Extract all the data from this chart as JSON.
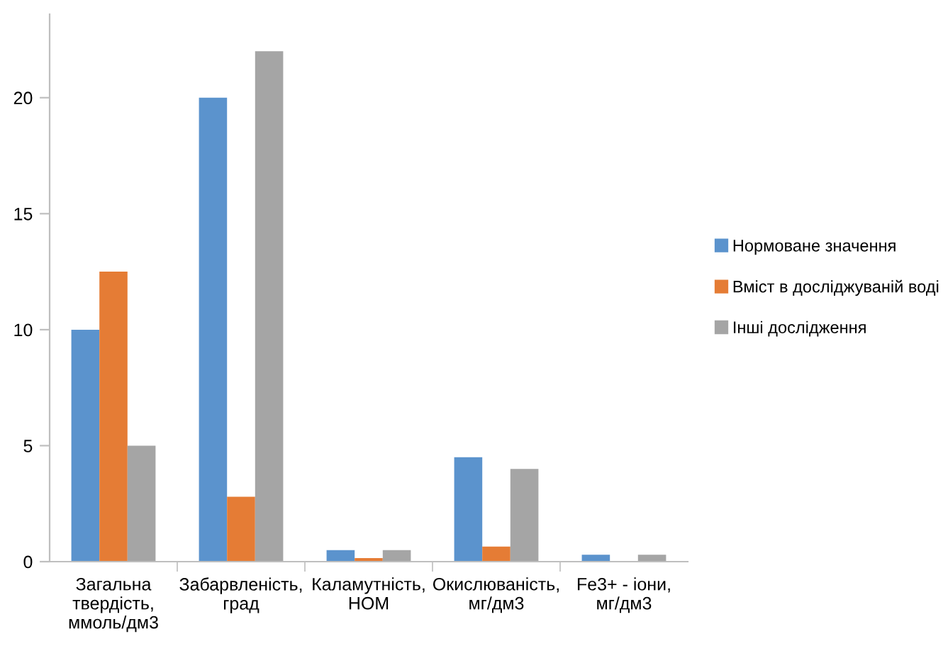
{
  "chart_data": {
    "type": "bar",
    "categories": [
      "Загальна\nтвердість,\nммоль/дм3",
      "Забарвленість,\nград",
      "Каламутність,\nНОМ",
      "Окислюваність,\nмг/дм3",
      "Fe3+ - іони,\nмг/дм3"
    ],
    "series": [
      {
        "name": "Нормоване значення",
        "color": "#5b93cd",
        "values": [
          10,
          20,
          0.5,
          4.5,
          0.3
        ]
      },
      {
        "name": "Вміст в досліджуваній воді",
        "color": "#e57c35",
        "values": [
          12.5,
          2.8,
          0.15,
          0.65,
          0
        ]
      },
      {
        "name": "Інші дослідження",
        "color": "#a5a5a5",
        "values": [
          5,
          22,
          0.5,
          4.0,
          0.3
        ]
      }
    ],
    "ylim": [
      0,
      23.6
    ],
    "yticks": [
      0,
      5,
      10,
      15,
      20
    ],
    "grid": false,
    "legend": "right"
  }
}
